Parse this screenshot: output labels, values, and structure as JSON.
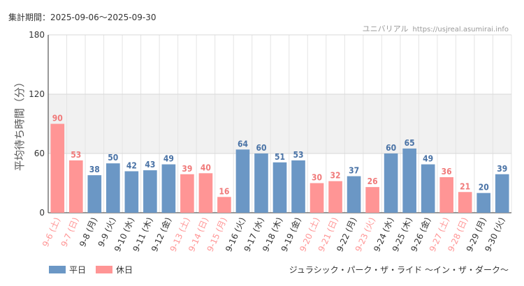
{
  "header": {
    "period": "集計期間：2025-09-06〜2025-09-30",
    "site_name": "ユニバリアル",
    "site_url": "https://usjreal.asumirai.info"
  },
  "footer": {
    "attraction": "ジュラシック・パーク・ザ・ライド 〜イン・ザ・ダーク〜"
  },
  "colors": {
    "weekday": "#6b97c5",
    "holiday": "#ff9595",
    "weekday_label": "#4a73a6",
    "holiday_label": "#f07a7a",
    "band": "#f1f1f1",
    "grid": "#e4e4e4"
  },
  "chart_data": {
    "type": "bar",
    "ylabel": "平均待ち時間（分）",
    "ylim": [
      0,
      180
    ],
    "yticks": [
      0,
      60,
      120,
      180
    ],
    "highlight_band": [
      60,
      120
    ],
    "categories": [
      "9-6 (土)",
      "9-7 (日)",
      "9-8 (月)",
      "9-9 (火)",
      "9-10 (水)",
      "9-11 (木)",
      "9-12 (金)",
      "9-13 (土)",
      "9-14 (日)",
      "9-15 (月)",
      "9-16 (火)",
      "9-17 (水)",
      "9-18 (木)",
      "9-19 (金)",
      "9-20 (土)",
      "9-21 (日)",
      "9-22 (月)",
      "9-23 (火)",
      "9-24 (水)",
      "9-25 (木)",
      "9-26 (金)",
      "9-27 (土)",
      "9-28 (日)",
      "9-29 (月)",
      "9-30 (火)"
    ],
    "values": [
      90,
      53,
      38,
      50,
      42,
      43,
      49,
      39,
      40,
      16,
      64,
      60,
      51,
      53,
      30,
      32,
      37,
      26,
      60,
      65,
      49,
      36,
      21,
      20,
      39
    ],
    "day_type": [
      "休日",
      "休日",
      "平日",
      "平日",
      "平日",
      "平日",
      "平日",
      "休日",
      "休日",
      "休日",
      "平日",
      "平日",
      "平日",
      "平日",
      "休日",
      "休日",
      "平日",
      "休日",
      "平日",
      "平日",
      "平日",
      "休日",
      "休日",
      "平日",
      "平日"
    ],
    "legend": [
      {
        "name": "平日",
        "color": "#6b97c5"
      },
      {
        "name": "休日",
        "color": "#ff9595"
      }
    ],
    "legend_placement": "bottom-left"
  }
}
